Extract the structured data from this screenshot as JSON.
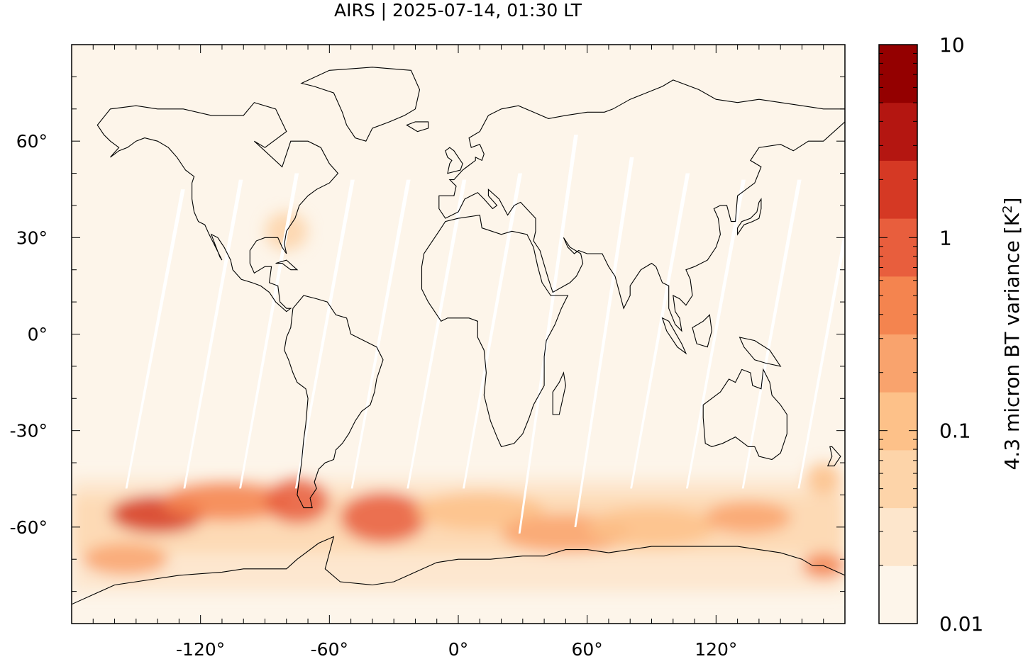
{
  "title": "AIRS | 2025-07-14, 01:30 LT",
  "map": {
    "projection": "plate-carree",
    "lon_range": [
      -180,
      180
    ],
    "lat_range": [
      -90,
      90
    ],
    "x_ticks": [
      {
        "value": -120,
        "label": "-120°"
      },
      {
        "value": -60,
        "label": "-60°"
      },
      {
        "value": 0,
        "label": "0°"
      },
      {
        "value": 60,
        "label": "60°"
      },
      {
        "value": 120,
        "label": "120°"
      }
    ],
    "y_ticks": [
      {
        "value": 60,
        "label": "60°"
      },
      {
        "value": 30,
        "label": "30°"
      },
      {
        "value": 0,
        "label": "0°"
      },
      {
        "value": -30,
        "label": "-30°"
      },
      {
        "value": -60,
        "label": "-60°"
      }
    ],
    "background_fill": "#fdf5ea",
    "coastline_color": "#000000",
    "coastlines": true,
    "swath_gaps": [
      {
        "lon_start": -155,
        "lat_top": 45,
        "lat_bottom": -48
      },
      {
        "lon_start": -128,
        "lat_top": 48,
        "lat_bottom": -48
      },
      {
        "lon_start": -102,
        "lat_top": 50,
        "lat_bottom": -48
      },
      {
        "lon_start": -76,
        "lat_top": 48,
        "lat_bottom": -48
      },
      {
        "lon_start": -50,
        "lat_top": 48,
        "lat_bottom": -48
      },
      {
        "lon_start": -24,
        "lat_top": 48,
        "lat_bottom": -48
      },
      {
        "lon_start": 2,
        "lat_top": 50,
        "lat_bottom": -48
      },
      {
        "lon_start": 28,
        "lat_top": 62,
        "lat_bottom": -62
      },
      {
        "lon_start": 54,
        "lat_top": 55,
        "lat_bottom": -60
      },
      {
        "lon_start": 80,
        "lat_top": 50,
        "lat_bottom": -48
      },
      {
        "lon_start": 106,
        "lat_top": 48,
        "lat_bottom": -48
      },
      {
        "lon_start": 132,
        "lat_top": 48,
        "lat_bottom": -48
      },
      {
        "lon_start": 158,
        "lat_top": 48,
        "lat_bottom": -48
      }
    ],
    "variance_regions": [
      {
        "lon": -140,
        "lat": -56,
        "level": 7,
        "rx": 22,
        "ry": 6
      },
      {
        "lon": -108,
        "lat": -52,
        "level": 5,
        "rx": 30,
        "ry": 6
      },
      {
        "lon": -75,
        "lat": -52,
        "level": 6,
        "rx": 15,
        "ry": 7
      },
      {
        "lon": -35,
        "lat": -57,
        "level": 6,
        "rx": 20,
        "ry": 8
      },
      {
        "lon": 10,
        "lat": -55,
        "level": 3,
        "rx": 30,
        "ry": 6
      },
      {
        "lon": 50,
        "lat": -62,
        "level": 4,
        "rx": 30,
        "ry": 6
      },
      {
        "lon": 90,
        "lat": -60,
        "level": 3,
        "rx": 30,
        "ry": 6
      },
      {
        "lon": 135,
        "lat": -57,
        "level": 4,
        "rx": 20,
        "ry": 5
      },
      {
        "lon": -155,
        "lat": -70,
        "level": 4,
        "rx": 20,
        "ry": 5
      },
      {
        "lon": 170,
        "lat": -72,
        "level": 5,
        "rx": 10,
        "ry": 4
      },
      {
        "lon": 170,
        "lat": -45,
        "level": 3,
        "rx": 8,
        "ry": 5
      },
      {
        "lon": -80,
        "lat": 32,
        "level": 2,
        "rx": 10,
        "ry": 6
      }
    ]
  },
  "colorbar": {
    "label": "4.3 micron BT variance [K²]",
    "label_text": "4.3 micron BT variance [K",
    "label_sup": "2",
    "label_close": "]",
    "scale": "log",
    "range": [
      0.01,
      10
    ],
    "tick_labels": [
      {
        "value": 10,
        "label": "10"
      },
      {
        "value": 1,
        "label": "1"
      },
      {
        "value": 0.1,
        "label": "0.1"
      },
      {
        "value": 0.01,
        "label": "0.01"
      }
    ],
    "colors": [
      "#fdf5ea",
      "#fde6cc",
      "#fdd4a9",
      "#fdc189",
      "#f9a36d",
      "#f4844f",
      "#e85e3d",
      "#d53924",
      "#b41611",
      "#940000"
    ]
  }
}
